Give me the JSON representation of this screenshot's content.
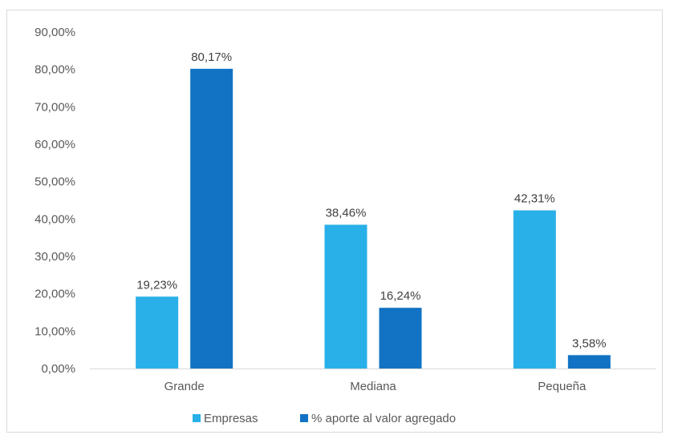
{
  "chart_data": {
    "type": "bar",
    "categories": [
      "Grande",
      "Mediana",
      "Pequeña"
    ],
    "series": [
      {
        "name": "Empresas",
        "color": "#29b0e8",
        "values": [
          19.23,
          38.46,
          42.31
        ],
        "labels": [
          "19,23%",
          "38,46%",
          "42,31%"
        ]
      },
      {
        "name": "% aporte al valor agregado",
        "color": "#1273c4",
        "values": [
          80.17,
          16.24,
          3.58
        ],
        "labels": [
          "80,17%",
          "16,24%",
          "3,58%"
        ]
      }
    ],
    "ylim": [
      0,
      90
    ],
    "yticks": [
      0,
      10,
      20,
      30,
      40,
      50,
      60,
      70,
      80,
      90
    ],
    "ytick_labels": [
      "0,00%",
      "10,00%",
      "20,00%",
      "30,00%",
      "40,00%",
      "50,00%",
      "60,00%",
      "70,00%",
      "80,00%",
      "90,00%"
    ],
    "grid": false,
    "legend_position": "bottom",
    "title": "",
    "xlabel": "",
    "ylabel": ""
  }
}
